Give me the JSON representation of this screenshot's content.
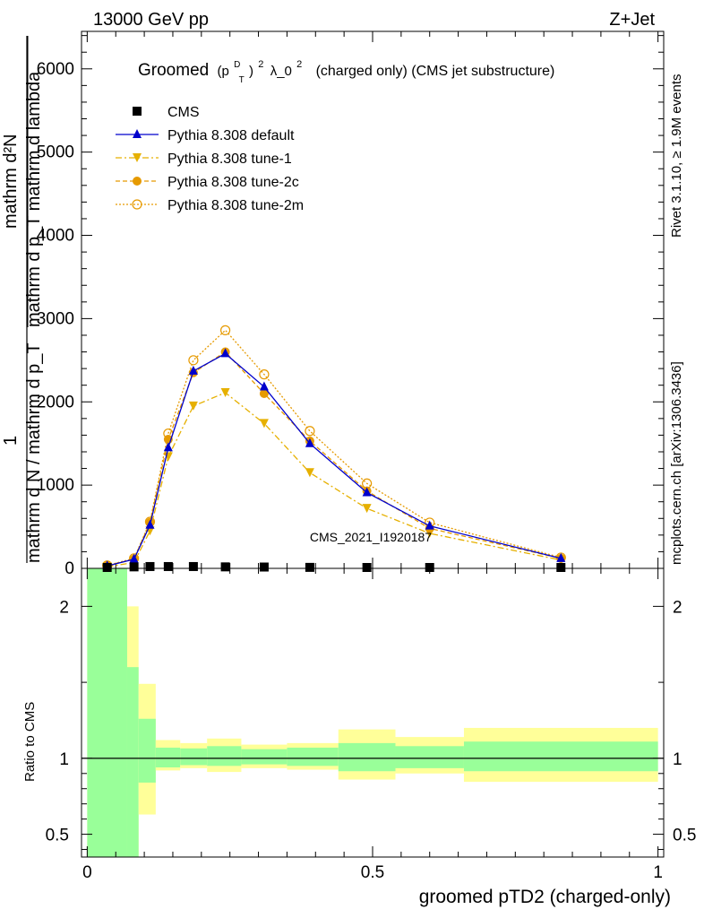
{
  "header": {
    "left": "13000 GeV pp",
    "right": "Z+Jet"
  },
  "side_labels": {
    "rivet": "Rivet 3.1.10, ≥ 1.9M events",
    "mcplots": "mcplots.cern.ch [arXiv:1306.3436]"
  },
  "plot_title": {
    "prefix": "Groomed",
    "p": "(p",
    "sup_d": "D",
    "sub_t": "T",
    "close": ")",
    "exp2": "2",
    "lam": "λ_0",
    "exp2b": "2",
    "suffix": "(charged only) (CMS jet substructure)"
  },
  "watermark": "CMS_2021_I1920187",
  "ylabel_main": {
    "numer": "mathrm d²N",
    "denom": "mathrm d p_T mathrm d lambda",
    "one": "1",
    "frac_denom": "mathrm d N / mathrm d p_T",
    "mathrm_d_pT": "mathrm d p_T"
  },
  "ylabel_ratio": "Ratio to CMS",
  "xlabel": "groomed pTD2 (charged-only)",
  "colors": {
    "cms": "#000000",
    "default": "#0000cc",
    "tune1": "#e6b000",
    "tune2c": "#e69a00",
    "tune2m": "#e69a00",
    "band_inner": "#99ff99",
    "band_outer": "#ffff99"
  },
  "legend": [
    {
      "label": "CMS"
    },
    {
      "label": "Pythia 8.308 default"
    },
    {
      "label": "Pythia 8.308 tune-1"
    },
    {
      "label": "Pythia 8.308 tune-2c"
    },
    {
      "label": "Pythia 8.308 tune-2m"
    }
  ],
  "chart_data": {
    "type": "line",
    "xlim": [
      -0.01,
      1.01
    ],
    "main_ylim": [
      0,
      6450
    ],
    "ratio_ylim": [
      0.35,
      2.25
    ],
    "main_yticks": [
      "0",
      "1000",
      "2000",
      "3000",
      "4000",
      "5000",
      "6000"
    ],
    "ratio_yticks": [
      "0.5",
      "1",
      "2"
    ],
    "xticks": [
      "0",
      "0.5",
      "1"
    ],
    "x": [
      0.035,
      0.082,
      0.11,
      0.142,
      0.186,
      0.242,
      0.31,
      0.39,
      0.49,
      0.6,
      0.83
    ],
    "series": [
      {
        "name": "CMS",
        "key": "cms",
        "values": [
          5,
          18,
          22,
          22,
          22,
          18,
          16,
          12,
          10,
          8,
          4
        ]
      },
      {
        "name": "Pythia 8.308 default",
        "key": "default",
        "values": [
          30,
          110,
          520,
          1450,
          2370,
          2580,
          2180,
          1500,
          910,
          510,
          120
        ]
      },
      {
        "name": "Pythia 8.308 tune-1",
        "key": "tune1",
        "values": [
          20,
          70,
          450,
          1340,
          1950,
          2110,
          1740,
          1150,
          720,
          420,
          100
        ]
      },
      {
        "name": "Pythia 8.308 tune-2c",
        "key": "tune2c",
        "values": [
          35,
          110,
          550,
          1550,
          2350,
          2600,
          2100,
          1530,
          930,
          480,
          120
        ]
      },
      {
        "name": "Pythia 8.308 tune-2m",
        "key": "tune2m",
        "values": [
          35,
          120,
          560,
          1620,
          2500,
          2860,
          2330,
          1650,
          1020,
          550,
          130
        ]
      }
    ],
    "ratio_bands": [
      {
        "x0": 0.0,
        "x1": 0.07,
        "inner": [
          0.3,
          2.3
        ],
        "outer": [
          0.3,
          2.3
        ]
      },
      {
        "x0": 0.07,
        "x1": 0.09,
        "inner": [
          0.35,
          1.6
        ],
        "outer": [
          0.3,
          2.0
        ]
      },
      {
        "x0": 0.09,
        "x1": 0.12,
        "inner": [
          0.84,
          1.26
        ],
        "outer": [
          0.63,
          1.49
        ]
      },
      {
        "x0": 0.12,
        "x1": 0.163,
        "inner": [
          0.94,
          1.07
        ],
        "outer": [
          0.92,
          1.12
        ]
      },
      {
        "x0": 0.163,
        "x1": 0.21,
        "inner": [
          0.955,
          1.065
        ],
        "outer": [
          0.935,
          1.1
        ]
      },
      {
        "x0": 0.21,
        "x1": 0.27,
        "inner": [
          0.95,
          1.08
        ],
        "outer": [
          0.91,
          1.13
        ]
      },
      {
        "x0": 0.27,
        "x1": 0.35,
        "inner": [
          0.96,
          1.06
        ],
        "outer": [
          0.935,
          1.09
        ]
      },
      {
        "x0": 0.35,
        "x1": 0.44,
        "inner": [
          0.95,
          1.07
        ],
        "outer": [
          0.925,
          1.1
        ]
      },
      {
        "x0": 0.44,
        "x1": 0.54,
        "inner": [
          0.915,
          1.1
        ],
        "outer": [
          0.86,
          1.19
        ]
      },
      {
        "x0": 0.54,
        "x1": 0.66,
        "inner": [
          0.935,
          1.08
        ],
        "outer": [
          0.9,
          1.14
        ]
      },
      {
        "x0": 0.66,
        "x1": 1.0,
        "inner": [
          0.915,
          1.11
        ],
        "outer": [
          0.845,
          1.2
        ]
      }
    ]
  }
}
